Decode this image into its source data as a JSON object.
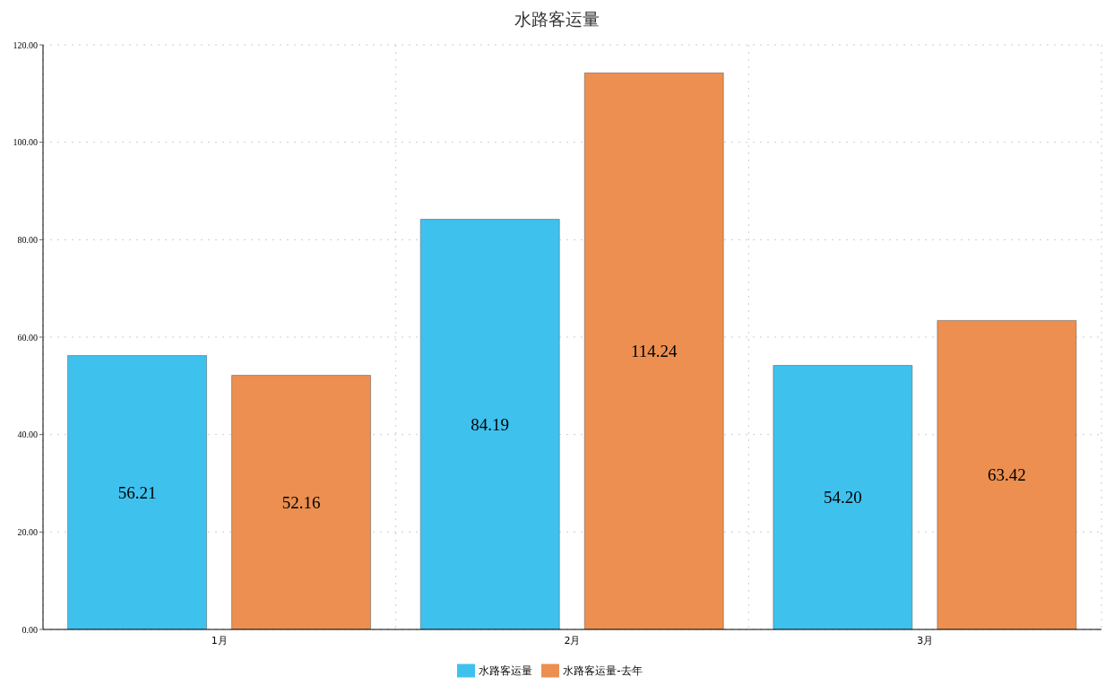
{
  "chart_data": {
    "type": "bar",
    "title": "水路客运量",
    "categories": [
      "1月",
      "2月",
      "3月"
    ],
    "series": [
      {
        "name": "水路客运量",
        "color": "#3fc1ee",
        "values": [
          56.21,
          84.19,
          54.2
        ],
        "value_labels": [
          "56.21",
          "84.19",
          "54.20"
        ]
      },
      {
        "name": "水路客运量-去年",
        "color": "#ec8f50",
        "values": [
          52.16,
          114.24,
          63.42
        ],
        "value_labels": [
          "52.16",
          "114.24",
          "63.42"
        ]
      }
    ],
    "ylim": [
      0,
      120
    ],
    "yticks": [
      {
        "value": 0,
        "label": "0.00"
      },
      {
        "value": 20,
        "label": "20.00"
      },
      {
        "value": 40,
        "label": "40.00"
      },
      {
        "value": 60,
        "label": "60.00"
      },
      {
        "value": 80,
        "label": "80.00"
      },
      {
        "value": 100,
        "label": "100.00"
      },
      {
        "value": 120,
        "label": "120.00"
      }
    ],
    "grid": true,
    "legend": "bottom"
  }
}
